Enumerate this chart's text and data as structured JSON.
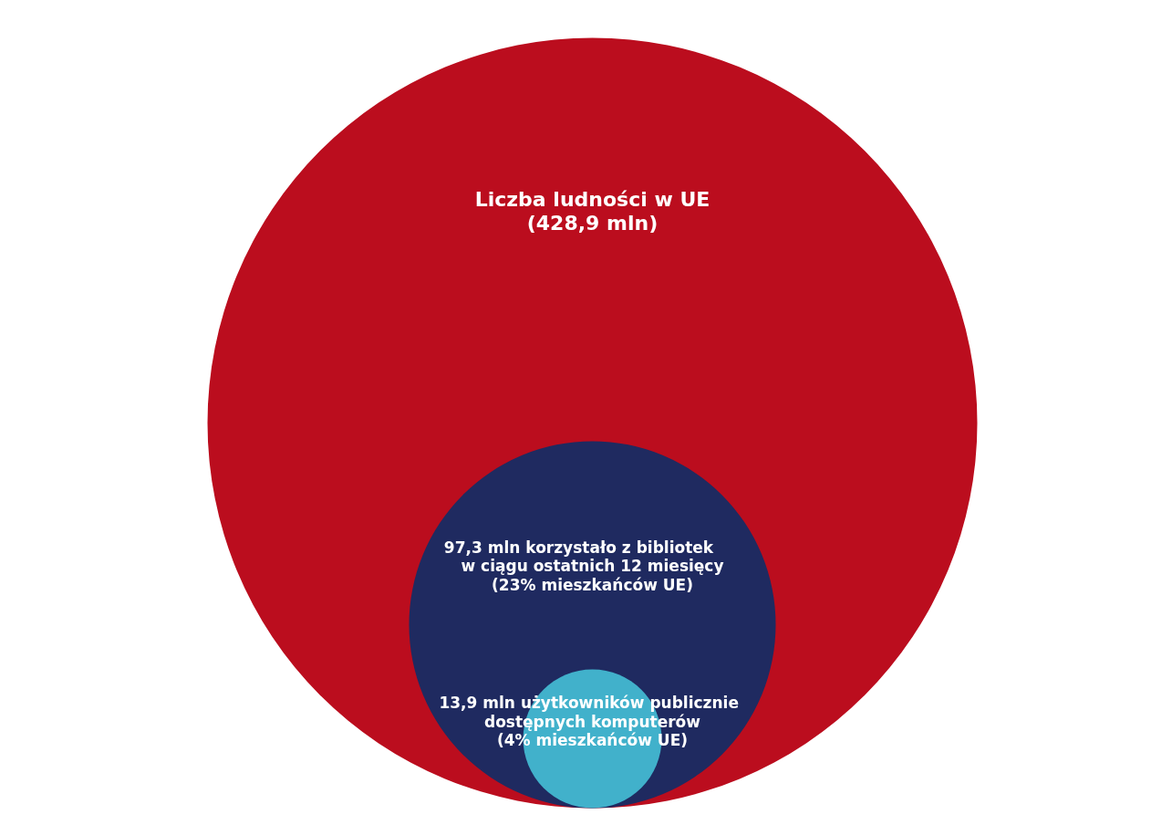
{
  "chart_data": {
    "type": "other",
    "categories": [
      "Liczba ludności w UE",
      "korzystało z bibliotek\nw ciągu ostatnich 12 miesięcy\n(23% mieszkańców UE)",
      "użytkowników publicznie\ndostępnych komputerów\n(4% mieszkańców UE)"
    ],
    "values": [
      428.9,
      97.3,
      13.9
    ],
    "value_labels": [
      "(428,9 mln)",
      "97,3 mln",
      "13,9 mln"
    ],
    "colors": [
      "#bb0d1e",
      "#1f2a60",
      "#41b1cb"
    ]
  }
}
